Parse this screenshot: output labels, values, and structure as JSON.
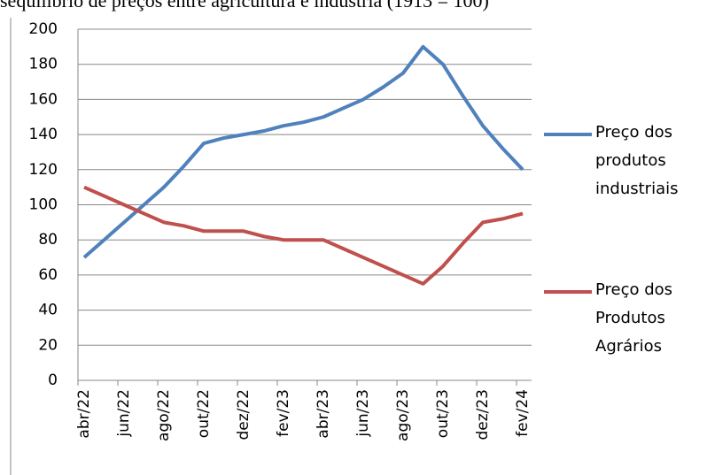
{
  "chart_data": {
    "type": "line",
    "title": "sequilíbrio de preços entre agricultura e indústria (1913 = 100)",
    "categories": [
      "abr/22",
      null,
      "jun/22",
      null,
      "ago/22",
      null,
      "out/22",
      null,
      "dez/22",
      null,
      "fev/23",
      null,
      "abr/23",
      null,
      "jun/23",
      null,
      "ago/23",
      null,
      "out/23",
      null,
      "dez/23",
      null,
      "fev/24"
    ],
    "series": [
      {
        "name": "Preço dos produtos industriais",
        "color": "#4f81bd",
        "values": [
          70,
          80,
          90,
          100,
          110,
          122,
          135,
          138,
          140,
          142,
          145,
          147,
          150,
          155,
          160,
          167,
          175,
          190,
          180,
          162,
          145,
          132,
          120
        ]
      },
      {
        "name": "Preço dos Produtos Agrários",
        "color": "#c0504d",
        "values": [
          110,
          105,
          100,
          95,
          90,
          88,
          85,
          85,
          85,
          82,
          80,
          80,
          80,
          75,
          70,
          65,
          60,
          55,
          65,
          78,
          90,
          92,
          95
        ]
      }
    ],
    "ylim": [
      0,
      200
    ],
    "yticks": [
      0,
      20,
      40,
      60,
      80,
      100,
      120,
      140,
      160,
      180,
      200
    ],
    "grid": true,
    "legend": "right"
  }
}
